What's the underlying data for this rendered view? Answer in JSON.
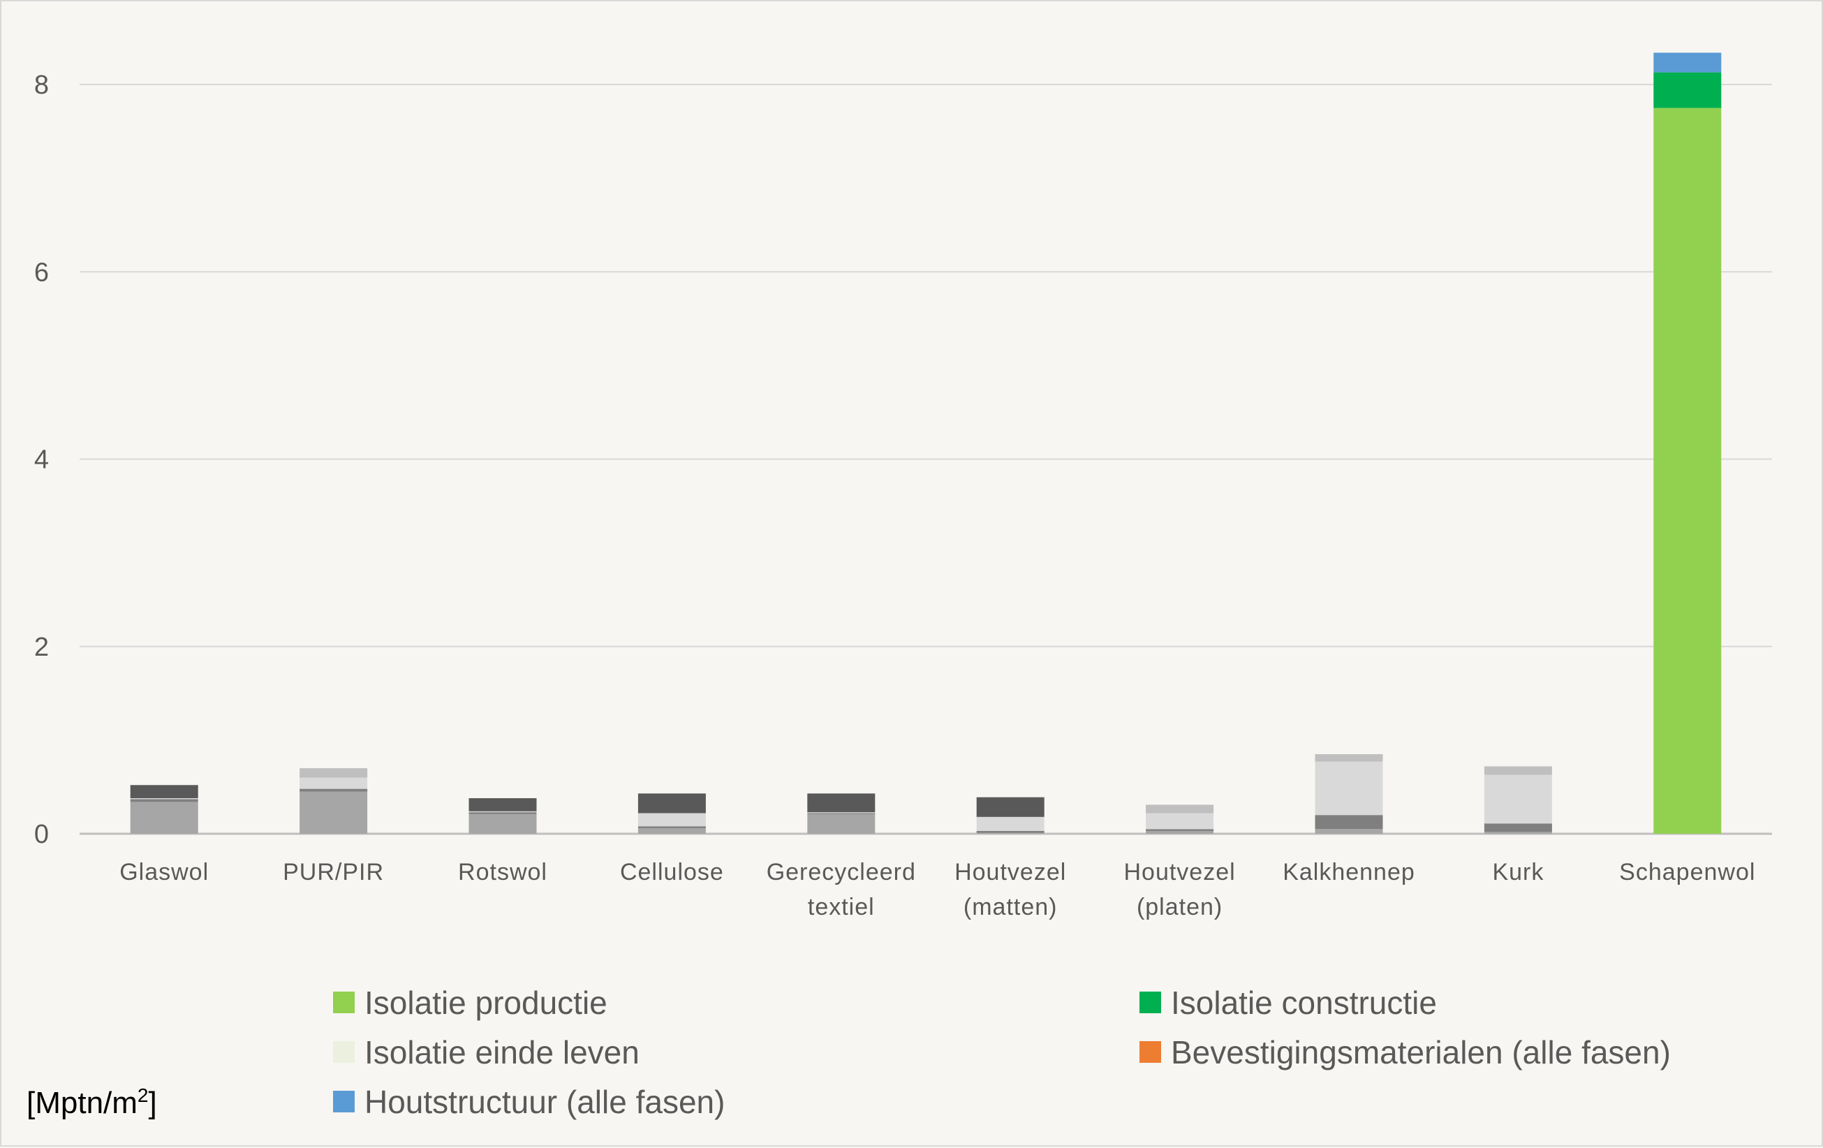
{
  "chart_data": {
    "type": "bar",
    "stacked": true,
    "unit_label": "[Mptn/m",
    "unit_superscript": "2",
    "unit_close": "]",
    "ylim": [
      0,
      8.5
    ],
    "yticks": [
      0,
      2,
      4,
      6,
      8
    ],
    "grid": true,
    "legend_position": "bottom",
    "categories": [
      [
        "Glaswol"
      ],
      [
        "PUR/PIR"
      ],
      [
        "Rotswol"
      ],
      [
        "Cellulose"
      ],
      [
        "Gerecycleerd",
        "textiel"
      ],
      [
        "Houtvezel",
        "(matten)"
      ],
      [
        "Houtvezel",
        "(platen)"
      ],
      [
        "Kalkhennep"
      ],
      [
        "Kurk"
      ],
      [
        "Schapenwol"
      ]
    ],
    "series": [
      {
        "name": "Isolatie productie",
        "color": "#92d050",
        "muted_color": "#a6a6a6",
        "values": [
          0.34,
          0.45,
          0.21,
          0.06,
          0.21,
          0.01,
          0.03,
          0.05,
          0.02,
          7.75
        ]
      },
      {
        "name": "Isolatie constructie",
        "color": "#00b050",
        "muted_color": "#7f7f7f",
        "values": [
          0.03,
          0.03,
          0.02,
          0.02,
          0.01,
          0.02,
          0.02,
          0.15,
          0.09,
          0.38
        ]
      },
      {
        "name": "Isolatie einde leven",
        "color": "#ebf1de",
        "muted_color": "#d9d9d9",
        "values": [
          0.01,
          0.12,
          0.01,
          0.14,
          0.01,
          0.15,
          0.17,
          0.57,
          0.52,
          0.0
        ]
      },
      {
        "name": "Bevestigingsmaterialen (alle fasen)",
        "color": "#ed7d31",
        "muted_color": "#bfbfbf",
        "values": [
          0.0,
          0.1,
          0.0,
          0.0,
          0.0,
          0.0,
          0.09,
          0.08,
          0.09,
          0.0
        ]
      },
      {
        "name": "Houtstructuur (alle fasen)",
        "color": "#5b9bd5",
        "muted_color": "#595959",
        "values": [
          0.14,
          0.0,
          0.14,
          0.21,
          0.2,
          0.21,
          0.0,
          0.0,
          0.0,
          0.21
        ]
      }
    ],
    "highlighted_category": "Schapenwol"
  }
}
